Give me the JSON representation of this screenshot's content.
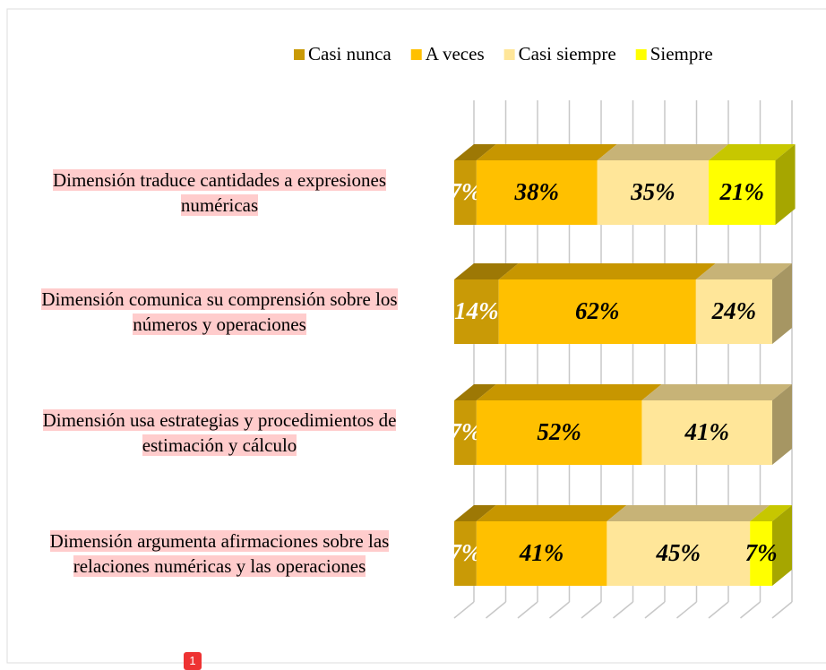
{
  "chart_data": {
    "type": "bar3d_stacked_horizontal",
    "categories": [
      "Dimensión traduce cantidades a expresiones numéricas",
      "Dimensión comunica su comprensión sobre los números y operaciones",
      "Dimensión usa estrategias y procedimientos de estimación y cálculo",
      "Dimensión argumenta afirmaciones sobre las relaciones numéricas y las operaciones"
    ],
    "series": [
      {
        "name": "Casi nunca",
        "color": "#c99a06",
        "values": [
          7,
          14,
          7,
          7
        ],
        "value_labels": [
          "7%",
          "14%",
          "7%",
          "7%"
        ]
      },
      {
        "name": "A veces",
        "color": "#ffc000",
        "values": [
          38,
          62,
          52,
          41
        ],
        "value_labels": [
          "38%",
          "62%",
          "52%",
          "41%"
        ]
      },
      {
        "name": "Casi siempre",
        "color": "#ffe699",
        "values": [
          35,
          24,
          41,
          45
        ],
        "value_labels": [
          "35%",
          "24%",
          "41%",
          "45%"
        ]
      },
      {
        "name": "Siempre",
        "color": "#ffff00",
        "values": [
          21,
          null,
          null,
          7
        ],
        "value_labels": [
          "21%",
          null,
          null,
          "7%"
        ]
      }
    ],
    "xlim": [
      0,
      100
    ],
    "xticks": [
      0,
      10,
      20,
      30,
      40,
      50,
      60,
      70,
      80,
      90,
      100
    ],
    "grid": true,
    "legend": "top"
  },
  "comment_badge": "1"
}
